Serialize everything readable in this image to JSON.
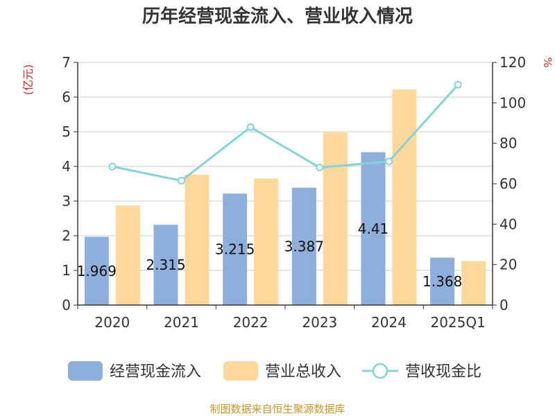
{
  "chart_data": {
    "type": "bar",
    "title": "历年经营现金流入、营业收入情况",
    "categories": [
      "2020",
      "2021",
      "2022",
      "2023",
      "2024",
      "2025Q1"
    ],
    "y_left": {
      "unit": "(亿元)",
      "min": 0,
      "max": 7,
      "ticks": [
        "0",
        "1",
        "2",
        "3",
        "4",
        "5",
        "6",
        "7"
      ]
    },
    "y_right": {
      "unit": "%",
      "min": 0,
      "max": 120,
      "ticks": [
        "0",
        "20",
        "40",
        "60",
        "80",
        "100",
        "120"
      ]
    },
    "series": [
      {
        "name": "经营现金流入",
        "type": "bar",
        "axis": "left",
        "color": "#8eaedb",
        "values": [
          1.969,
          2.315,
          3.215,
          3.387,
          4.41,
          1.368
        ],
        "labels": [
          "1.969",
          "2.315",
          "3.215",
          "3.387",
          "4.41",
          "1.368"
        ]
      },
      {
        "name": "营业总收入",
        "type": "bar",
        "axis": "left",
        "color": "#fdd89a",
        "values": [
          2.87,
          3.76,
          3.65,
          4.98,
          6.22,
          1.27
        ]
      },
      {
        "name": "营收现金比",
        "type": "line",
        "axis": "right",
        "color": "#85d3d6",
        "values": [
          68.5,
          61.5,
          88.0,
          68.0,
          71.0,
          109.0
        ]
      }
    ],
    "grid": true,
    "legend_position": "bottom"
  },
  "source": "制图数据来自恒生聚源数据库"
}
